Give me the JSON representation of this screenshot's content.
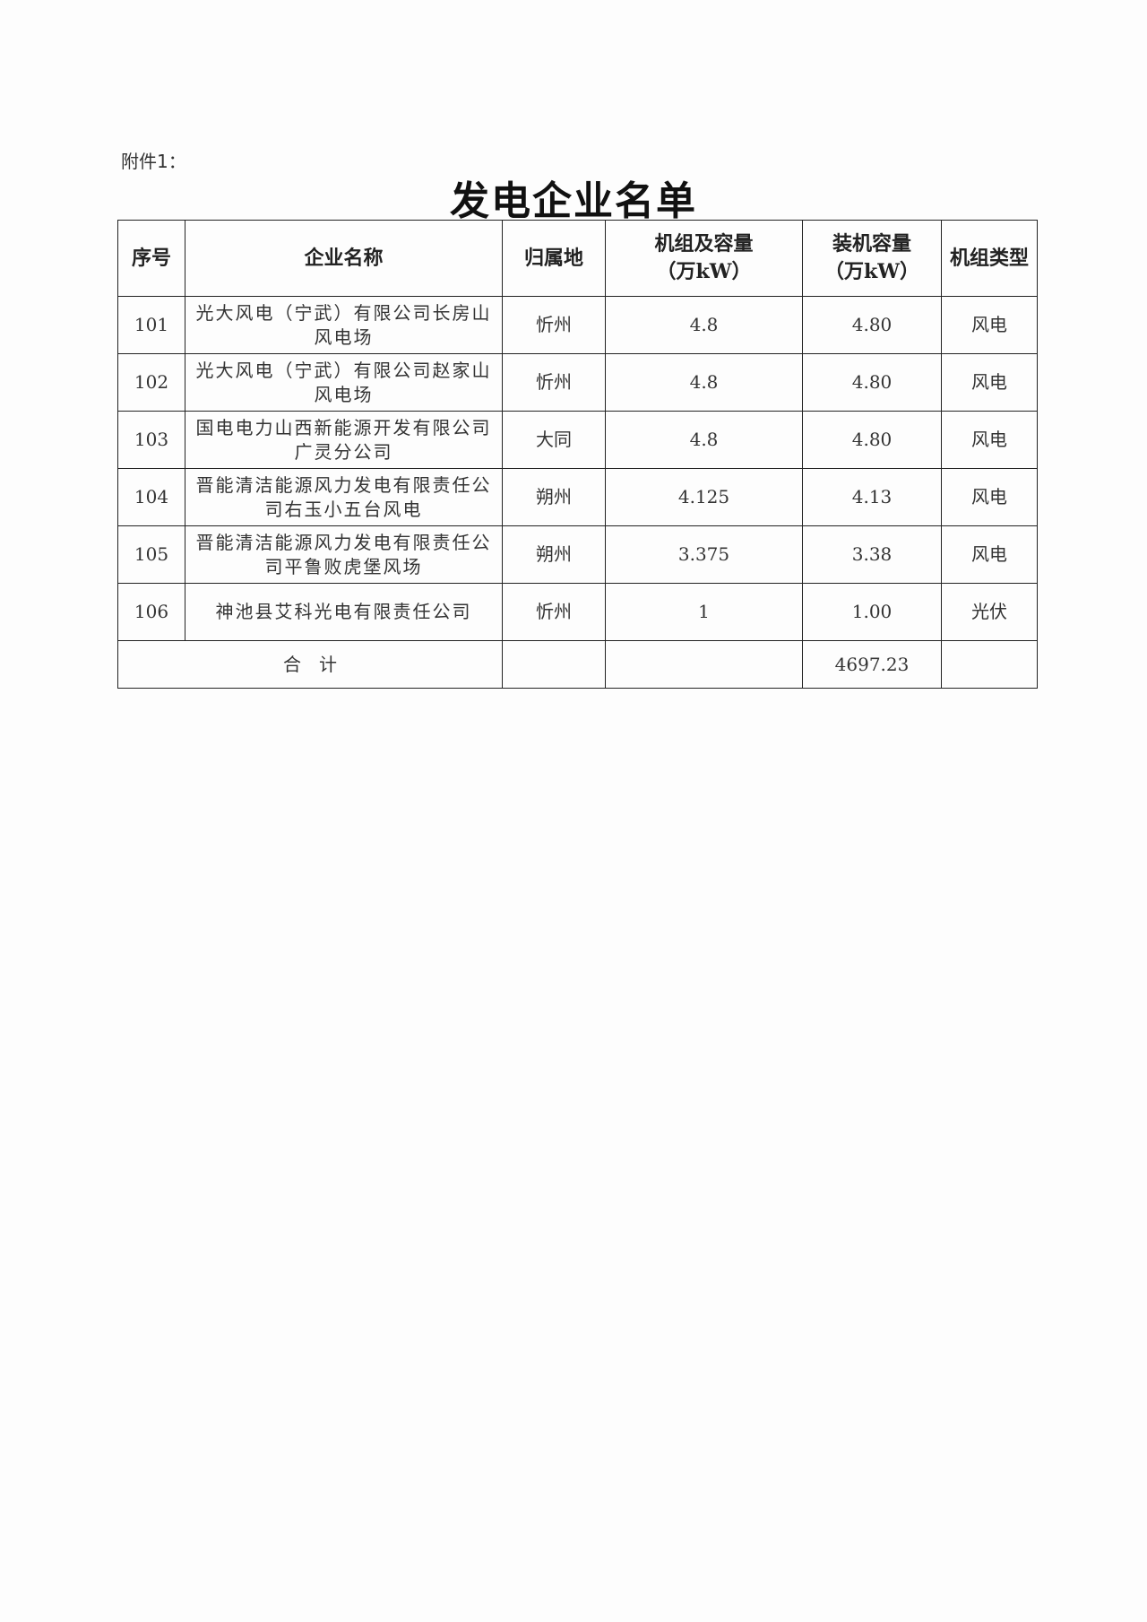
{
  "attachment_label": "附件1：",
  "title": "发电企业名单",
  "table": {
    "headers": [
      "序号",
      "企业名称",
      "归属地",
      "机组及容量（万kW）",
      "装机容量（万kW）",
      "机组类型"
    ],
    "header_lines": {
      "unit_capacity": [
        "机组及容量",
        "（万kW）"
      ],
      "installed_capacity": [
        "装机容量",
        "（万kW）"
      ]
    },
    "rows": [
      {
        "no": "101",
        "name": "光大风电（宁武）有限公司长房山风电场",
        "location": "忻州",
        "unit_capacity": "4.8",
        "installed_capacity": "4.80",
        "type": "风电"
      },
      {
        "no": "102",
        "name": "光大风电（宁武）有限公司赵家山风电场",
        "location": "忻州",
        "unit_capacity": "4.8",
        "installed_capacity": "4.80",
        "type": "风电"
      },
      {
        "no": "103",
        "name": "国电电力山西新能源开发有限公司广灵分公司",
        "location": "大同",
        "unit_capacity": "4.8",
        "installed_capacity": "4.80",
        "type": "风电"
      },
      {
        "no": "104",
        "name": "晋能清洁能源风力发电有限责任公司右玉小五台风电",
        "location": "朔州",
        "unit_capacity": "4.125",
        "installed_capacity": "4.13",
        "type": "风电"
      },
      {
        "no": "105",
        "name": "晋能清洁能源风力发电有限责任公司平鲁败虎堡风场",
        "location": "朔州",
        "unit_capacity": "3.375",
        "installed_capacity": "3.38",
        "type": "风电"
      },
      {
        "no": "106",
        "name": "神池县艾科光电有限责任公司",
        "location": "忻州",
        "unit_capacity": "1",
        "installed_capacity": "1.00",
        "type": "光伏"
      }
    ],
    "total": {
      "label": "合　计",
      "installed_capacity": "4697.23"
    }
  }
}
